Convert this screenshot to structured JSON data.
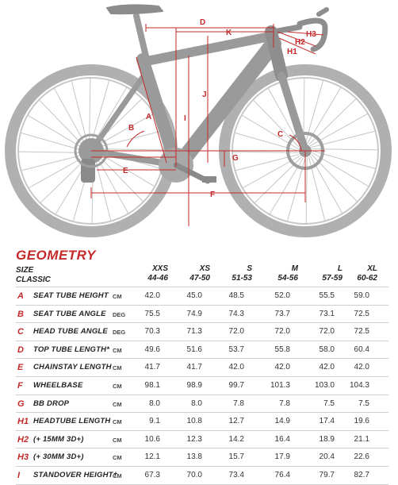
{
  "diagram": {
    "labels": [
      "A",
      "B",
      "C",
      "D",
      "E",
      "F",
      "G",
      "H1",
      "H2",
      "H3",
      "I",
      "J",
      "K"
    ]
  },
  "table": {
    "title": "GEOMETRY",
    "size_label": "SIZE",
    "classic_label": "CLASSIC",
    "sizes": [
      {
        "size": "XXS",
        "classic": "44-46"
      },
      {
        "size": "XS",
        "classic": "47-50"
      },
      {
        "size": "S",
        "classic": "51-53"
      },
      {
        "size": "M",
        "classic": "54-56"
      },
      {
        "size": "L",
        "classic": "57-59"
      },
      {
        "size": "XL",
        "classic": "60-62"
      }
    ],
    "rows": [
      {
        "letter": "A",
        "name": "SEAT TUBE HEIGHT",
        "unit": "CM",
        "values": [
          "42.0",
          "45.0",
          "48.5",
          "52.0",
          "55.5",
          "59.0"
        ]
      },
      {
        "letter": "B",
        "name": "SEAT TUBE ANGLE",
        "unit": "DEG",
        "values": [
          "75.5",
          "74.9",
          "74.3",
          "73.7",
          "73.1",
          "72.5"
        ]
      },
      {
        "letter": "C",
        "name": "HEAD TUBE ANGLE",
        "unit": "DEG",
        "values": [
          "70.3",
          "71.3",
          "72.0",
          "72.0",
          "72.0",
          "72.5"
        ]
      },
      {
        "letter": "D",
        "name": "TOP TUBE LENGTH*",
        "unit": "CM",
        "values": [
          "49.6",
          "51.6",
          "53.7",
          "55.8",
          "58.0",
          "60.4"
        ]
      },
      {
        "letter": "E",
        "name": "CHAINSTAY LENGTH",
        "unit": "CM",
        "values": [
          "41.7",
          "41.7",
          "42.0",
          "42.0",
          "42.0",
          "42.0"
        ]
      },
      {
        "letter": "F",
        "name": "WHEELBASE",
        "unit": "CM",
        "values": [
          "98.1",
          "98.9",
          "99.7",
          "101.3",
          "103.0",
          "104.3"
        ]
      },
      {
        "letter": "G",
        "name": "BB DROP",
        "unit": "CM",
        "values": [
          "8.0",
          "8.0",
          "7.8",
          "7.8",
          "7.5",
          "7.5"
        ]
      },
      {
        "letter": "H1",
        "name": "HEADTUBE LENGTH",
        "unit": "CM",
        "values": [
          "9.1",
          "10.8",
          "12.7",
          "14.9",
          "17.4",
          "19.6"
        ]
      },
      {
        "letter": "H2",
        "name": "(+ 15MM 3D+)",
        "unit": "CM",
        "values": [
          "10.6",
          "12.3",
          "14.2",
          "16.4",
          "18.9",
          "21.1"
        ]
      },
      {
        "letter": "H3",
        "name": "(+ 30MM 3D+)",
        "unit": "CM",
        "values": [
          "12.1",
          "13.8",
          "15.7",
          "17.9",
          "20.4",
          "22.6"
        ]
      },
      {
        "letter": "I",
        "name": "STANDOVER HEIGHT†",
        "unit": "CM",
        "values": [
          "67.3",
          "70.0",
          "73.4",
          "76.4",
          "79.7",
          "82.7"
        ]
      }
    ]
  },
  "colors": {
    "accent": "#c42a2a",
    "frame": "#9a9a9a",
    "wheel": "#b5b5b5"
  }
}
